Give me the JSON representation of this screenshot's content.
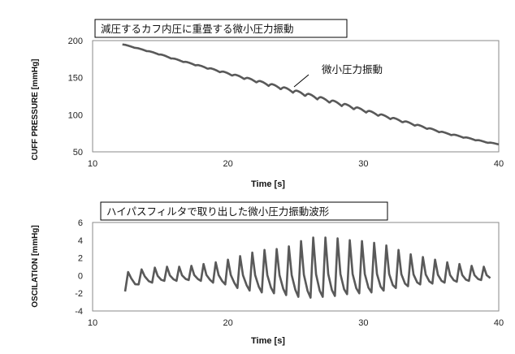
{
  "chart_data": [
    {
      "type": "line",
      "title": "減圧するカフ内圧に重畳する微小圧力振動",
      "xlabel": "Time  [s]",
      "ylabel": "CUFF PRESSURE [mmHg]",
      "xlim": [
        10,
        40
      ],
      "ylim": [
        50,
        200
      ],
      "xticks": [
        10,
        20,
        30,
        40
      ],
      "yticks": [
        50,
        100,
        150,
        200
      ],
      "annotation": {
        "text": "微小圧力振動",
        "x": 24.5,
        "y": 134
      },
      "line_color": "#595959",
      "series": [
        {
          "x": [
            12.2,
            13,
            14,
            15,
            16,
            17,
            18,
            19,
            20,
            21,
            22,
            23,
            24,
            25,
            26,
            27,
            28,
            29,
            30,
            31,
            32,
            33,
            34,
            35,
            36,
            37,
            38,
            39,
            40
          ],
          "values": [
            195,
            191,
            186,
            181,
            175,
            170,
            165,
            160,
            155,
            150,
            145,
            140,
            135,
            130,
            125,
            120,
            115,
            110,
            105,
            100,
            95,
            90,
            85,
            80,
            75,
            71,
            67,
            63,
            60
          ],
          "oscillation_mmHg": [
            0.5,
            0.6,
            0.8,
            1.0,
            1.2,
            1.3,
            1.5,
            1.8,
            2.2,
            2.6,
            3.0,
            3.5,
            3.8,
            4.0,
            4.2,
            4.2,
            4.1,
            3.9,
            3.6,
            3.2,
            2.8,
            2.5,
            2.2,
            1.9,
            1.6,
            1.4,
            1.2,
            1.0,
            0.8
          ]
        }
      ]
    },
    {
      "type": "line",
      "title": "ハイパスフィルタで取り出した微小圧力振動波形",
      "xlabel": "Time  [s]",
      "ylabel": "OSCILATION [mmHg]",
      "xlim": [
        10,
        40
      ],
      "ylim": [
        -4,
        6
      ],
      "xticks": [
        10,
        20,
        30,
        40
      ],
      "yticks": [
        -4,
        -2,
        0,
        2,
        4,
        6
      ],
      "line_color": "#595959",
      "series": [
        {
          "beat_times": [
            12.4,
            13.4,
            14.4,
            15.3,
            16.2,
            17.1,
            18.0,
            18.9,
            19.8,
            20.7,
            21.6,
            22.5,
            23.4,
            24.3,
            25.2,
            26.1,
            27.0,
            27.9,
            28.8,
            29.7,
            30.6,
            31.5,
            32.4,
            33.3,
            34.2,
            35.1,
            36.0,
            36.9,
            37.8,
            38.7
          ],
          "peaks": [
            0.4,
            0.7,
            0.9,
            1.0,
            1.0,
            1.1,
            1.3,
            1.5,
            1.8,
            2.2,
            2.6,
            2.9,
            3.0,
            3.3,
            3.9,
            4.3,
            4.3,
            4.2,
            4.0,
            3.9,
            3.7,
            3.4,
            2.9,
            2.4,
            2.1,
            1.8,
            1.5,
            1.3,
            1.1,
            1.0
          ],
          "troughs": [
            -1.8,
            -1.0,
            -0.8,
            -0.6,
            -0.6,
            -0.5,
            -0.6,
            -0.8,
            -1.0,
            -1.4,
            -1.7,
            -1.9,
            -2.0,
            -2.2,
            -2.4,
            -2.5,
            -2.4,
            -2.3,
            -2.1,
            -2.0,
            -1.9,
            -1.7,
            -1.4,
            -1.2,
            -1.0,
            -0.9,
            -0.8,
            -0.7,
            -0.6,
            -0.5
          ]
        }
      ]
    }
  ]
}
